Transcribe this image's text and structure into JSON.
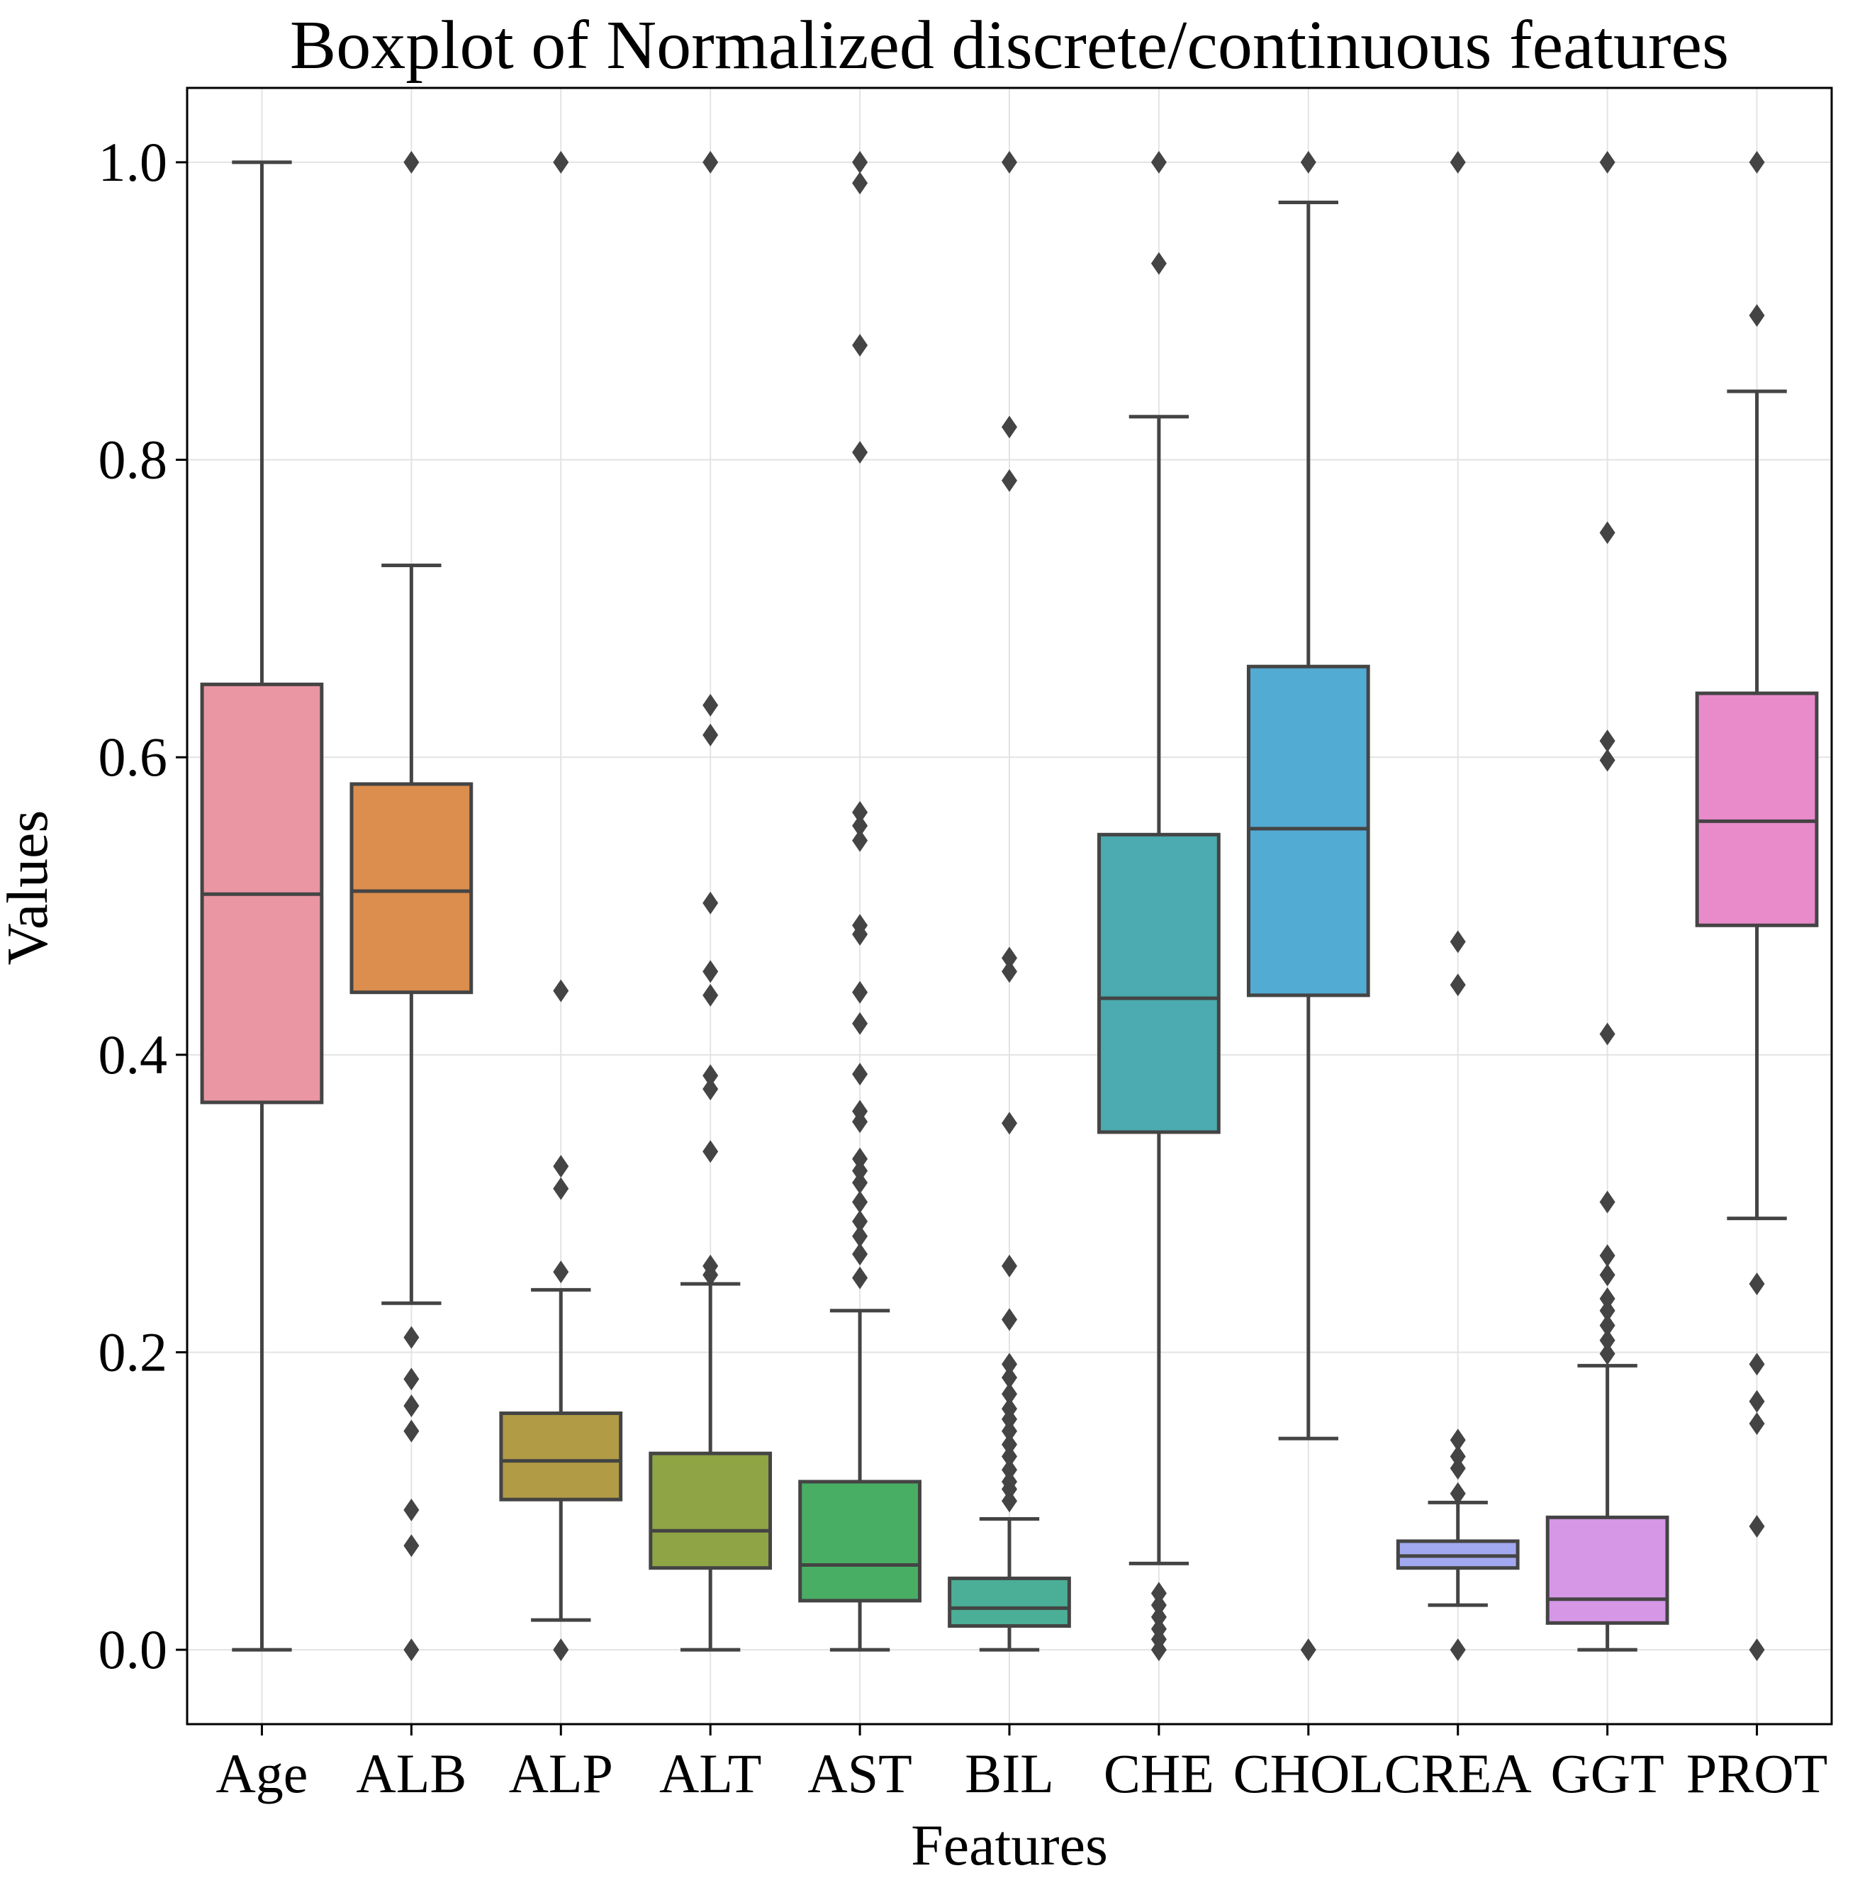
{
  "chart_data": {
    "type": "box",
    "title": "Boxplot of Normalized discrete/continuous features",
    "xlabel": "Features",
    "ylabel": "Values",
    "ylim": [
      -0.05,
      1.05
    ],
    "yticks": [
      {
        "value": 0.0,
        "label": "0.0"
      },
      {
        "value": 0.2,
        "label": "0.2"
      },
      {
        "value": 0.4,
        "label": "0.4"
      },
      {
        "value": 0.6,
        "label": "0.6"
      },
      {
        "value": 0.8,
        "label": "0.8"
      },
      {
        "value": 1.0,
        "label": "1.0"
      }
    ],
    "grid": true,
    "categories": [
      "Age",
      "ALB",
      "ALP",
      "ALT",
      "AST",
      "BIL",
      "CHE",
      "CHOL",
      "CREA",
      "GGT",
      "PROT"
    ],
    "boxes": [
      {
        "name": "Age",
        "color": "#EA96A3",
        "whisker_low": 0.0,
        "q1": 0.368,
        "median": 0.508,
        "q3": 0.649,
        "whisker_high": 1.0,
        "outliers": []
      },
      {
        "name": "ALB",
        "color": "#DB8E4E",
        "whisker_low": 0.233,
        "q1": 0.442,
        "median": 0.51,
        "q3": 0.582,
        "whisker_high": 0.729,
        "outliers": [
          1.0,
          0.21,
          0.182,
          0.164,
          0.147,
          0.094,
          0.07,
          0.0
        ]
      },
      {
        "name": "ALP",
        "color": "#B19B45",
        "whisker_low": 0.02,
        "q1": 0.101,
        "median": 0.127,
        "q3": 0.159,
        "whisker_high": 0.242,
        "outliers": [
          1.0,
          0.443,
          0.325,
          0.31,
          0.254,
          0.0
        ]
      },
      {
        "name": "ALT",
        "color": "#8FA444",
        "whisker_low": 0.0,
        "q1": 0.055,
        "median": 0.08,
        "q3": 0.132,
        "whisker_high": 0.246,
        "outliers": [
          1.0,
          0.635,
          0.615,
          0.502,
          0.456,
          0.44,
          0.386,
          0.377,
          0.335,
          0.258,
          0.252
        ]
      },
      {
        "name": "AST",
        "color": "#48AE64",
        "whisker_low": 0.0,
        "q1": 0.033,
        "median": 0.057,
        "q3": 0.113,
        "whisker_high": 0.228,
        "outliers": [
          1.0,
          0.986,
          0.877,
          0.805,
          0.563,
          0.554,
          0.544,
          0.487,
          0.481,
          0.442,
          0.421,
          0.387,
          0.362,
          0.355,
          0.33,
          0.322,
          0.314,
          0.301,
          0.288,
          0.278,
          0.266,
          0.25
        ]
      },
      {
        "name": "BIL",
        "color": "#4BAE96",
        "whisker_low": 0.0,
        "q1": 0.016,
        "median": 0.028,
        "q3": 0.048,
        "whisker_high": 0.088,
        "outliers": [
          1.0,
          0.822,
          0.786,
          0.465,
          0.456,
          0.354,
          0.258,
          0.222,
          0.192,
          0.183,
          0.172,
          0.162,
          0.155,
          0.147,
          0.138,
          0.13,
          0.121,
          0.113,
          0.108,
          0.1
        ]
      },
      {
        "name": "CHE",
        "color": "#4BABB0",
        "whisker_low": 0.058,
        "q1": 0.348,
        "median": 0.438,
        "q3": 0.548,
        "whisker_high": 0.829,
        "outliers": [
          1.0,
          0.932,
          0.038,
          0.03,
          0.022,
          0.014,
          0.007,
          0.0
        ]
      },
      {
        "name": "CHOL",
        "color": "#52ABD3",
        "whisker_low": 0.142,
        "q1": 0.44,
        "median": 0.552,
        "q3": 0.661,
        "whisker_high": 0.973,
        "outliers": [
          1.0,
          0.0
        ]
      },
      {
        "name": "CREA",
        "color": "#A3A9F0",
        "whisker_low": 0.03,
        "q1": 0.055,
        "median": 0.063,
        "q3": 0.073,
        "whisker_high": 0.099,
        "outliers": [
          1.0,
          0.476,
          0.447,
          0.141,
          0.13,
          0.122,
          0.105,
          0.0
        ]
      },
      {
        "name": "GGT",
        "color": "#D597E6",
        "whisker_low": 0.0,
        "q1": 0.018,
        "median": 0.034,
        "q3": 0.089,
        "whisker_high": 0.191,
        "outliers": [
          1.0,
          0.751,
          0.611,
          0.598,
          0.414,
          0.301,
          0.265,
          0.252,
          0.236,
          0.228,
          0.218,
          0.208,
          0.199
        ]
      },
      {
        "name": "PROT",
        "color": "#E98BCB",
        "whisker_low": 0.29,
        "q1": 0.487,
        "median": 0.557,
        "q3": 0.643,
        "whisker_high": 0.846,
        "outliers": [
          1.0,
          0.897,
          0.246,
          0.192,
          0.167,
          0.152,
          0.083,
          0.0
        ]
      }
    ]
  }
}
